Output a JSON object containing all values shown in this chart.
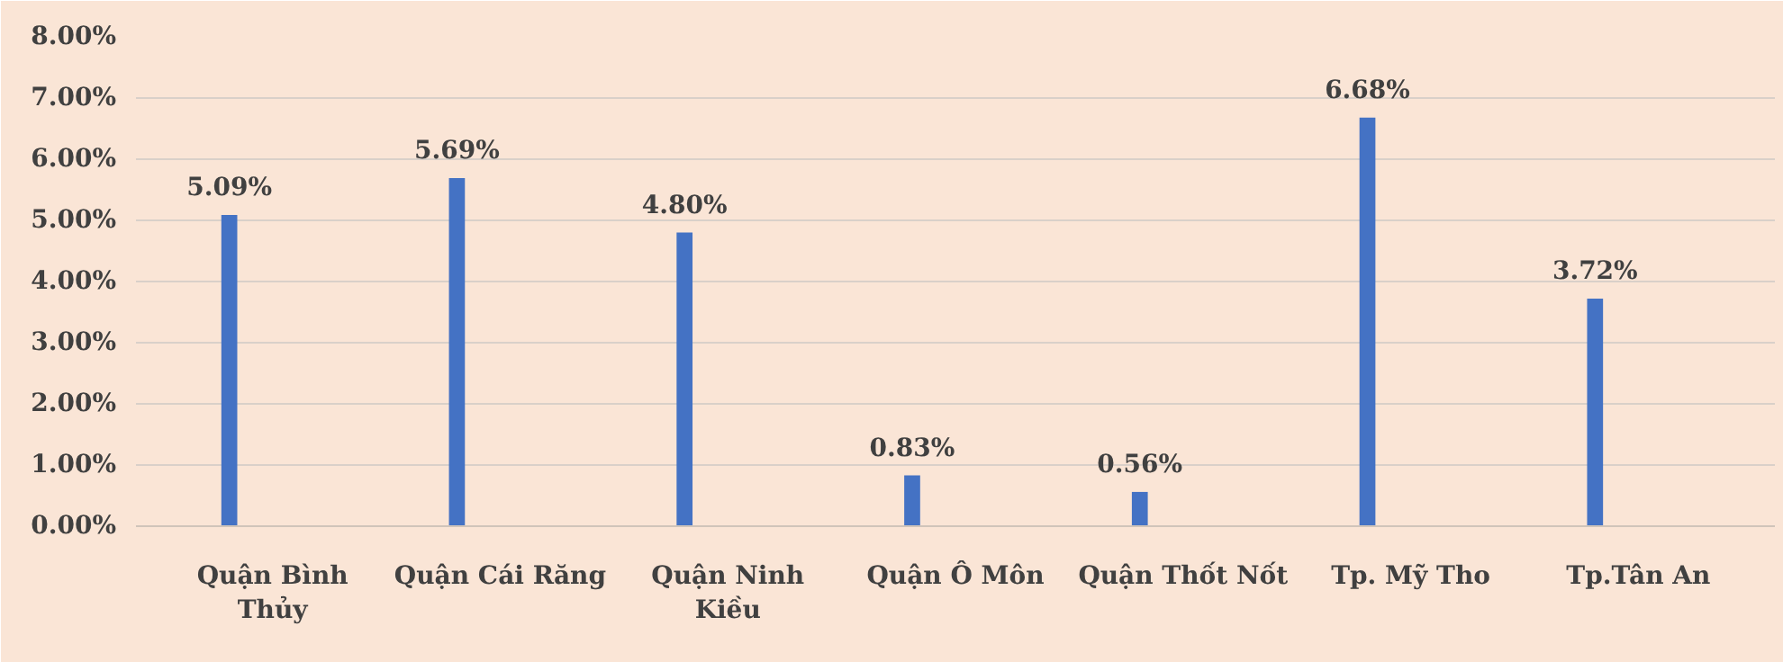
{
  "chart_data": {
    "type": "bar",
    "categories": [
      "Quận Bình Thủy",
      "Quận Cái Răng",
      "Quận Ninh Kiều",
      "Quận Ô Môn",
      "Quận Thốt Nốt",
      "Tp. Mỹ Tho",
      "Tp.Tân An"
    ],
    "values": [
      5.09,
      5.69,
      4.8,
      0.83,
      0.56,
      6.68,
      3.72
    ],
    "value_labels": [
      "5.09%",
      "5.69%",
      "4.80%",
      "0.83%",
      "0.56%",
      "6.68%",
      "3.72%"
    ],
    "color": "#4472c4",
    "ylim": [
      0,
      8
    ],
    "yticks": [
      {
        "value": 0,
        "label": "0.00%"
      },
      {
        "value": 1,
        "label": "1.00%"
      },
      {
        "value": 2,
        "label": "2.00%"
      },
      {
        "value": 3,
        "label": "3.00%"
      },
      {
        "value": 4,
        "label": "4.00%"
      },
      {
        "value": 5,
        "label": "5.00%"
      },
      {
        "value": 6,
        "label": "6.00%"
      },
      {
        "value": 7,
        "label": "7.00%"
      },
      {
        "value": 8,
        "label": "8.00%"
      }
    ],
    "grid": "y"
  }
}
